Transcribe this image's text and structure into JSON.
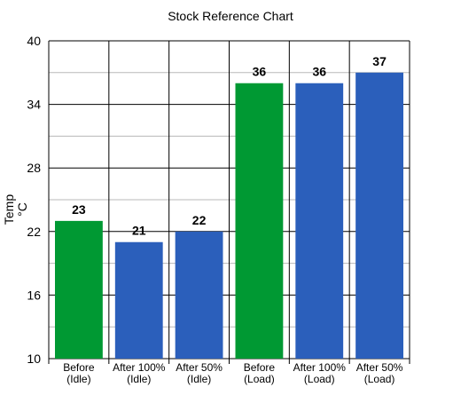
{
  "chart_data": {
    "type": "bar",
    "title": "Stock Reference Chart",
    "ylabel_line1": "Temp",
    "ylabel_line2": "°C",
    "xlabel": "",
    "ylim": [
      10,
      40
    ],
    "yticks": [
      10,
      16,
      22,
      28,
      34,
      40
    ],
    "minor_step": 3,
    "grid": true,
    "categories": [
      [
        "Before",
        "(Idle)"
      ],
      [
        "After 100%",
        "(Idle)"
      ],
      [
        "After 50%",
        "(Idle)"
      ],
      [
        "Before",
        "(Load)"
      ],
      [
        "After 100%",
        "(Load)"
      ],
      [
        "After 50%",
        "(Load)"
      ]
    ],
    "values": [
      23,
      21,
      22,
      36,
      36,
      37
    ],
    "bar_colors": [
      "#009933",
      "#2b5fbb",
      "#2b5fbb",
      "#009933",
      "#2b5fbb",
      "#2b5fbb"
    ]
  }
}
